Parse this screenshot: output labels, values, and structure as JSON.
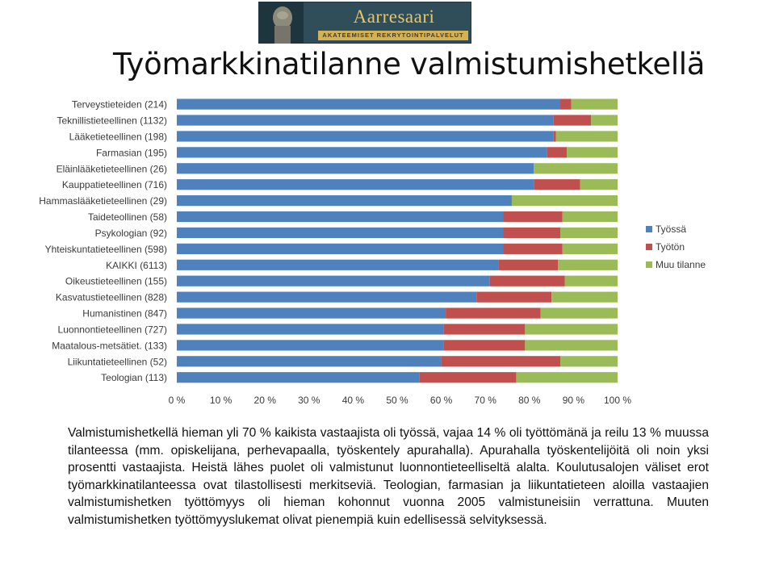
{
  "logo": {
    "name": "Aarresaari",
    "tagline": "AKATEEMISET REKRYTOINTIPALVELUT"
  },
  "title": "Työmarkkinatilanne valmistumishetkellä",
  "chart_data": {
    "type": "bar",
    "orientation": "horizontal",
    "stacked": true,
    "percent": true,
    "categories": [
      "Terveystieteiden (214)",
      "Teknillistieteellinen (1132)",
      "Lääketieteellinen (198)",
      "Farmasian (195)",
      "Eläinlääketieteellinen (26)",
      "Kauppatieteellinen (716)",
      "Hammaslääketieteellinen (29)",
      "Taideteollinen (58)",
      "Psykologian (92)",
      "Yhteiskuntatieteellinen (598)",
      "KAIKKI (6113)",
      "Oikeustieteellinen (155)",
      "Kasvatustieteellinen (828)",
      "Humanistinen (847)",
      "Luonnontieteellinen (727)",
      "Maatalous-metsätiet. (133)",
      "Liikuntatieteellinen (52)",
      "Teologian (113)"
    ],
    "series": [
      {
        "name": "Työssä",
        "color": "#4f81bd",
        "values": [
          87,
          85.5,
          85.5,
          84,
          81,
          81,
          76,
          74,
          74,
          74,
          73,
          71,
          68,
          61,
          60.5,
          60.5,
          60,
          55
        ]
      },
      {
        "name": "Työtön",
        "color": "#c0504d",
        "values": [
          2.5,
          8.5,
          0.5,
          4.5,
          0,
          10.5,
          0,
          13.5,
          13,
          13.5,
          13.5,
          17,
          17,
          21.5,
          18.5,
          18.5,
          27,
          22
        ]
      },
      {
        "name": "Muu tilanne",
        "color": "#9bbb59",
        "values": [
          10.5,
          6,
          14,
          11.5,
          19,
          8.5,
          24,
          12.5,
          13,
          12.5,
          13.5,
          12,
          15,
          17.5,
          21,
          21,
          13,
          23
        ]
      }
    ],
    "xlim": [
      0,
      100
    ],
    "xticks": [
      "0 %",
      "10 %",
      "20 %",
      "30 %",
      "40 %",
      "50 %",
      "60 %",
      "70 %",
      "80 %",
      "90 %",
      "100 %"
    ],
    "legend_position": "right",
    "grid": false
  },
  "summary": "Valmistumishetkellä hieman yli 70 % kaikista vastaajista oli työssä, vajaa 14 % oli työttömänä ja reilu 13 % muussa tilanteessa (mm. opiskelijana, perhevapaalla, työskentely apurahalla). Apurahalla työskentelijöitä oli noin yksi prosentti vastaajista. Heistä lähes puolet oli valmistunut luonnontieteelliseltä alalta. Koulutusalojen väliset erot työmarkkinatilanteessa ovat tilastollisesti merkitseviä. Teologian, farmasian ja liikuntatieteen aloilla vastaajien valmistumishetken työttömyys oli hieman kohonnut vuonna 2005 valmistuneisiin verrattuna. Muuten valmistumishetken työttömyyslukemat olivat pienempiä kuin edellisessä selvityksessä."
}
